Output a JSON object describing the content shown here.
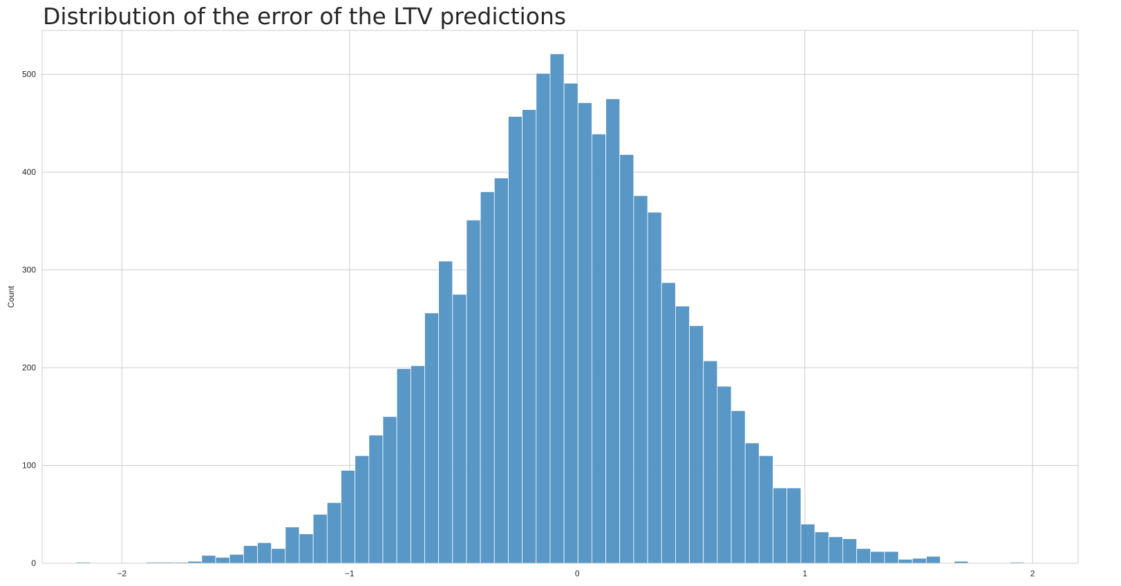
{
  "chart_data": {
    "type": "bar",
    "title": "Distribution of the error of the LTV predictions",
    "xlabel": "",
    "ylabel": "Count",
    "xlim": [
      -2.35,
      2.2
    ],
    "ylim": [
      0,
      545
    ],
    "xticks": [
      -2,
      -1,
      0,
      1,
      2
    ],
    "xtick_labels": [
      "−2",
      "−1",
      "0",
      "1",
      "2"
    ],
    "yticks": [
      0,
      100,
      200,
      300,
      400,
      500
    ],
    "ytick_labels": [
      "0",
      "100",
      "200",
      "300",
      "400",
      "500"
    ],
    "grid": true,
    "bin_start": -2.2,
    "bin_width": 0.0612,
    "counts": [
      1,
      0,
      0,
      0,
      0,
      1,
      1,
      1,
      2,
      8,
      6,
      9,
      18,
      21,
      15,
      37,
      30,
      50,
      62,
      95,
      110,
      131,
      150,
      199,
      202,
      256,
      309,
      275,
      351,
      380,
      394,
      457,
      464,
      501,
      521,
      491,
      471,
      439,
      475,
      418,
      376,
      359,
      287,
      263,
      243,
      207,
      181,
      156,
      123,
      110,
      77,
      77,
      40,
      32,
      27,
      25,
      15,
      12,
      12,
      4,
      5,
      7,
      0,
      2,
      0,
      0,
      0,
      1
    ],
    "bar_color": "#4c8fc2"
  }
}
